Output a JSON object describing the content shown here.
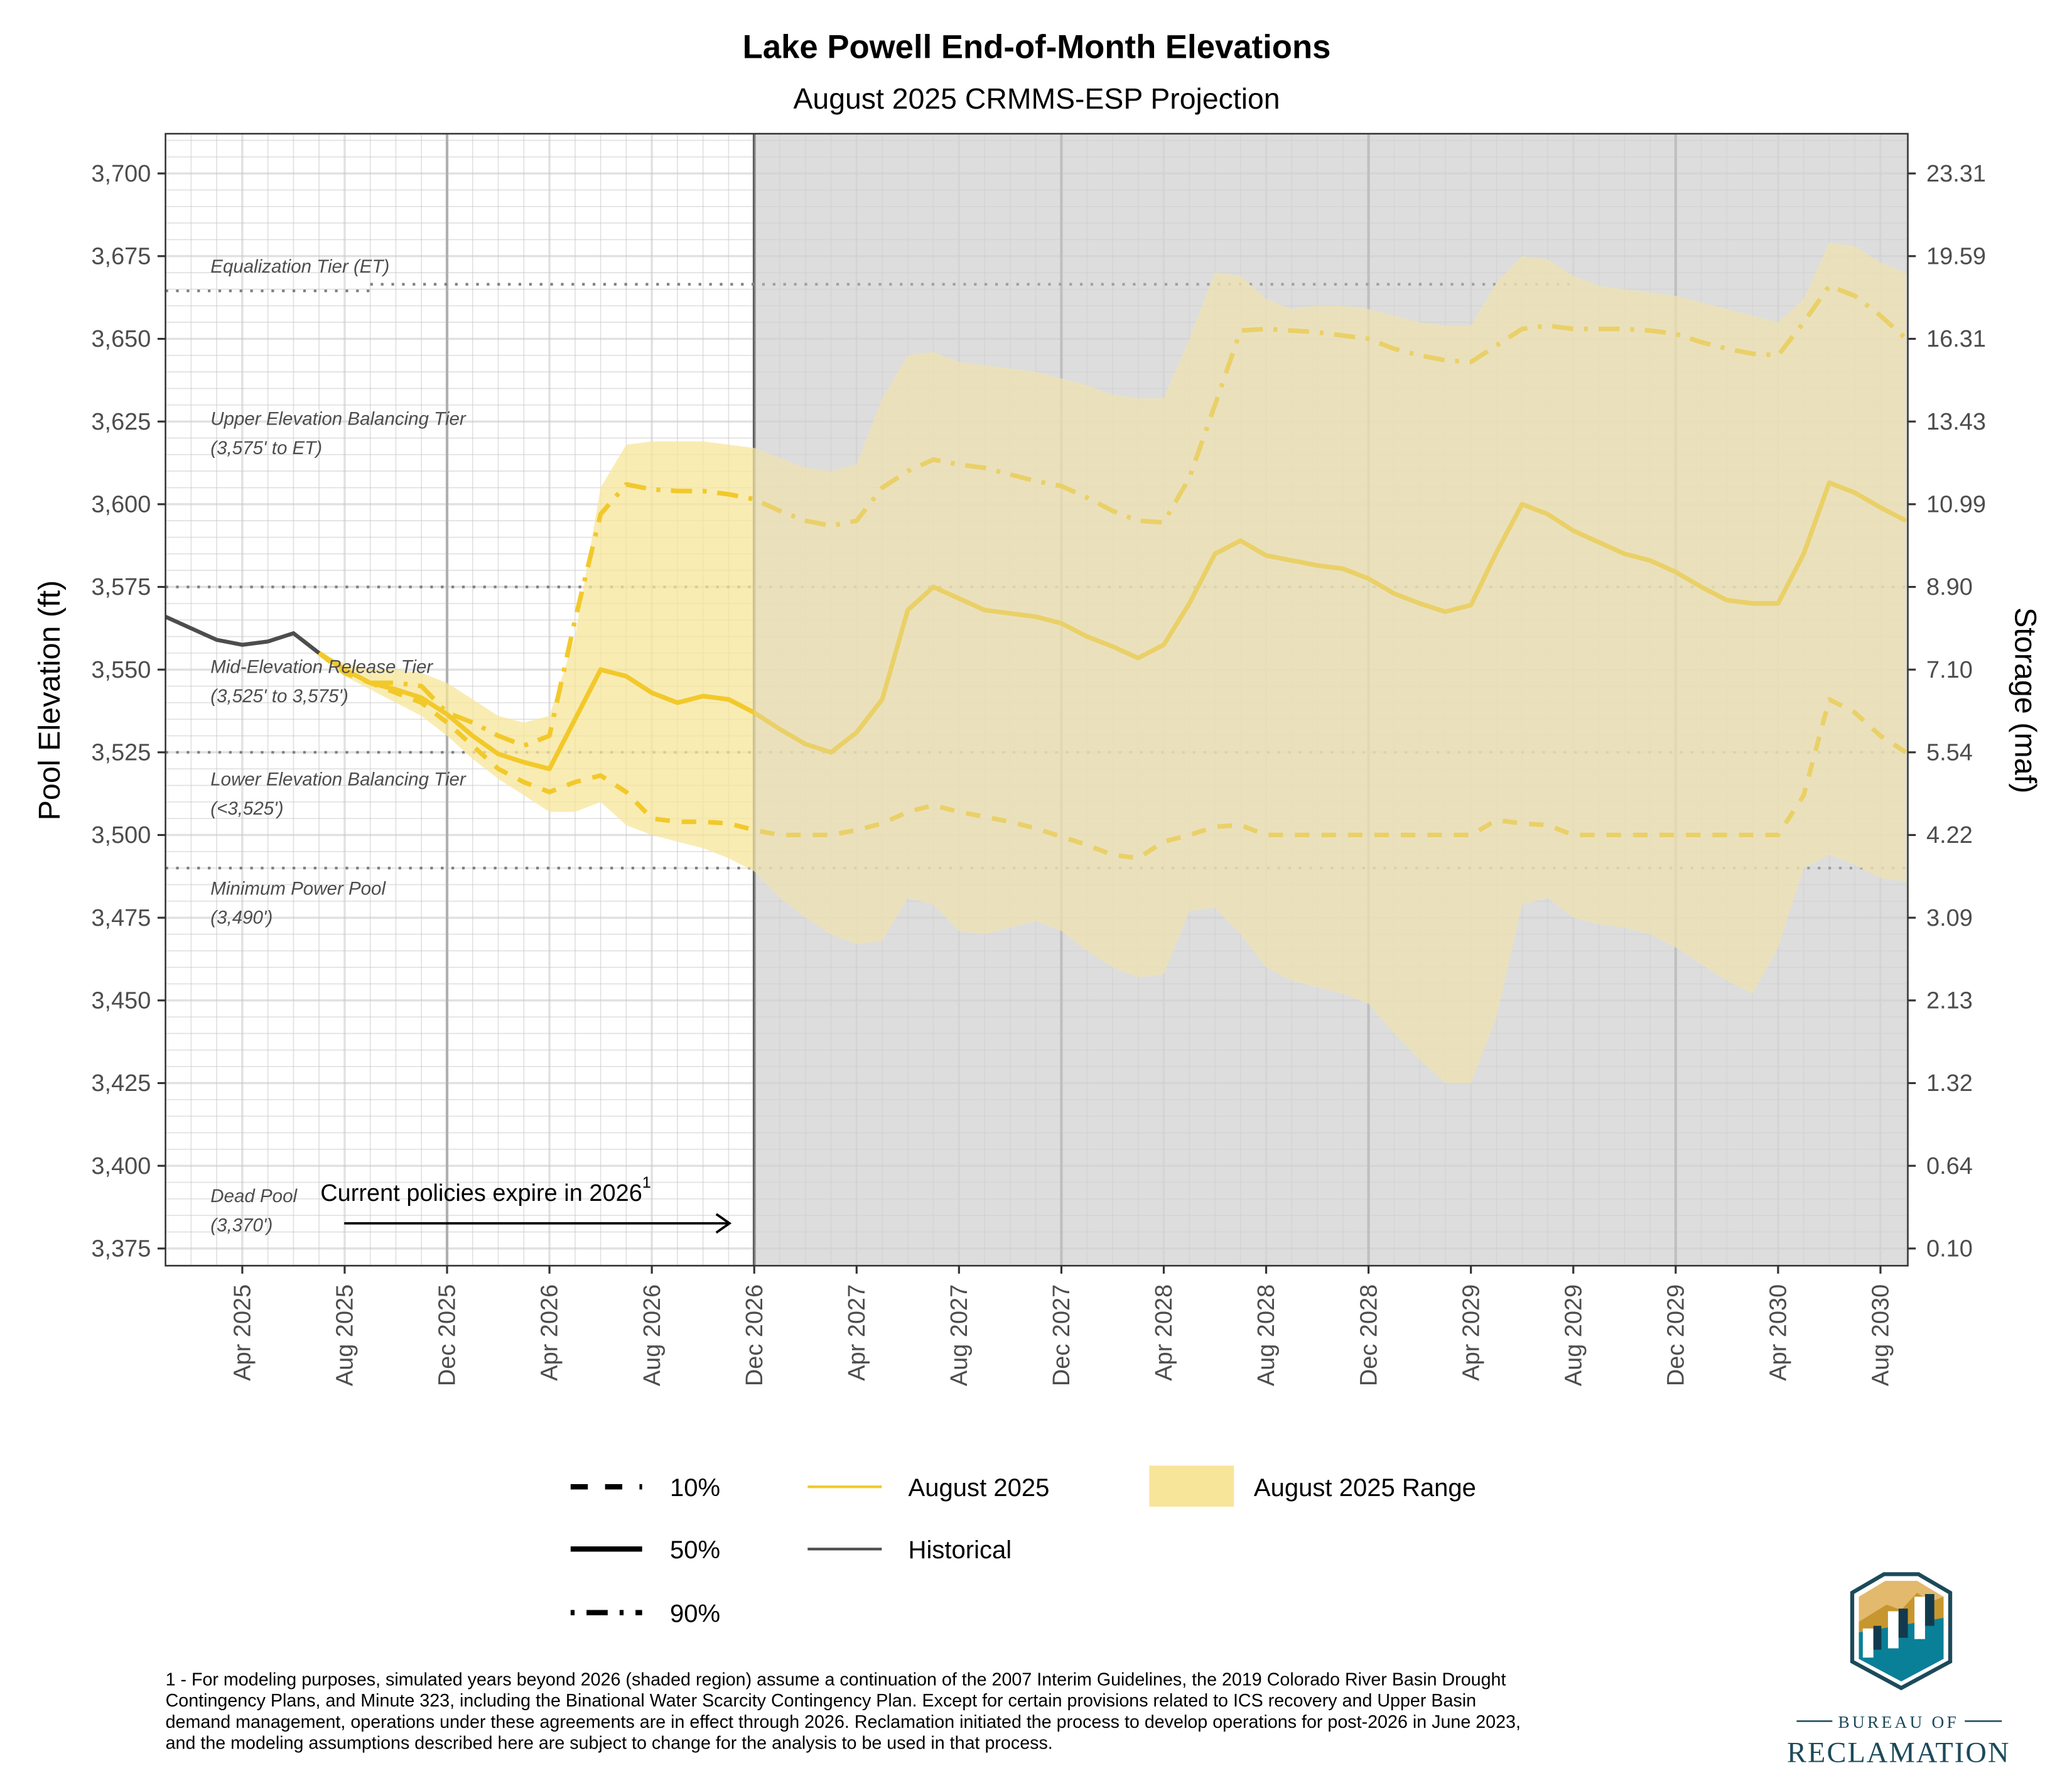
{
  "chart_data": {
    "type": "line",
    "title": "Lake Powell End-of-Month Elevations",
    "subtitle": "August 2025 CRMMS-ESP Projection",
    "ylabel": "Pool Elevation (ft)",
    "y2label": "Storage (maf)",
    "xlabel": "",
    "ylim": [
      3369,
      3712
    ],
    "yticks": [
      3375,
      3400,
      3425,
      3450,
      3475,
      3500,
      3525,
      3550,
      3575,
      3600,
      3625,
      3650,
      3675,
      3700
    ],
    "ytick_labels": [
      "3,375",
      "3,400",
      "3,425",
      "3,450",
      "3,475",
      "3,500",
      "3,525",
      "3,550",
      "3,575",
      "3,600",
      "3,625",
      "3,650",
      "3,675",
      "3,700"
    ],
    "y2tick_labels": [
      "0.10",
      "0.64",
      "1.32",
      "2.13",
      "3.09",
      "4.22",
      "5.54",
      "7.10",
      "8.90",
      "10.99",
      "13.43",
      "16.31",
      "19.59",
      "23.31"
    ],
    "x_start": "Jan 2025",
    "x_end": "Sep 2030",
    "xtick_labels": [
      "Apr 2025",
      "Aug 2025",
      "Dec 2025",
      "Apr 2026",
      "Aug 2026",
      "Dec 2026",
      "Apr 2027",
      "Aug 2027",
      "Dec 2027",
      "Apr 2028",
      "Aug 2028",
      "Dec 2028",
      "Apr 2029",
      "Aug 2029",
      "Dec 2029",
      "Apr 2030",
      "Aug 2030"
    ],
    "xtick_month_index": [
      3,
      7,
      11,
      15,
      19,
      23,
      27,
      31,
      35,
      39,
      43,
      47,
      51,
      55,
      59,
      63,
      67
    ],
    "year_divider_month_index": [
      11,
      35,
      47,
      59
    ],
    "shaded_from_month_index": 23,
    "grid": true,
    "legend_position": "bottom",
    "historical": {
      "name": "Historical",
      "start_month_index": 0,
      "values": [
        3566,
        3562.5,
        3559,
        3557.5,
        3558.5,
        3561,
        3555
      ]
    },
    "projection_start_month_index": 6,
    "series": [
      {
        "name": "10%",
        "trace": "August 2025",
        "values": [
          3555,
          3549,
          3546,
          3543,
          3540,
          3534,
          3527,
          3520,
          3516,
          3513,
          3516,
          3518,
          3513,
          3505,
          3504,
          3504,
          3503.5,
          3501.5,
          3500,
          3500,
          3500,
          3501.5,
          3503.5,
          3507,
          3509,
          3507,
          3505.5,
          3504,
          3502,
          3499.5,
          3497,
          3494,
          3493,
          3498,
          3500,
          3502.5,
          3503,
          3500,
          3500,
          3500,
          3500,
          3500,
          3500,
          3500,
          3500,
          3500,
          3504.5,
          3503.5,
          3503,
          3500,
          3500,
          3500,
          3500,
          3500,
          3500,
          3500,
          3500,
          3500,
          3512,
          3541,
          3537,
          3530,
          3525
        ]
      },
      {
        "name": "50%",
        "trace": "August 2025",
        "values": [
          3555,
          3550,
          3546,
          3544,
          3541.5,
          3536.5,
          3530,
          3524.5,
          3522,
          3520,
          3535,
          3550,
          3548,
          3543,
          3540,
          3542,
          3541,
          3537,
          3532,
          3527.5,
          3525,
          3531,
          3541,
          3568,
          3575,
          3571.5,
          3568,
          3567,
          3566,
          3564,
          3560,
          3557,
          3553.5,
          3557.5,
          3570,
          3585,
          3589,
          3584.5,
          3583,
          3581.5,
          3580.5,
          3577.5,
          3573,
          3570,
          3567.5,
          3569.5,
          3585.5,
          3600,
          3597,
          3592,
          3588.5,
          3585,
          3583,
          3579.5,
          3575,
          3571,
          3570,
          3570,
          3585,
          3606.5,
          3603.5,
          3599,
          3595
        ]
      },
      {
        "name": "90%",
        "trace": "August 2025",
        "values": [
          3555,
          3550,
          3546,
          3546,
          3545,
          3537,
          3534,
          3530,
          3527,
          3530,
          3565,
          3597,
          3606,
          3604.5,
          3604,
          3604,
          3603,
          3601.5,
          3598,
          3595,
          3593.5,
          3595,
          3605,
          3610,
          3613.5,
          3612,
          3611,
          3609,
          3607,
          3605.5,
          3602,
          3598,
          3595,
          3594.5,
          3608,
          3630,
          3652.5,
          3653,
          3652.5,
          3652,
          3651,
          3650,
          3647,
          3645,
          3643.5,
          3643,
          3648,
          3653,
          3654,
          3653,
          3653,
          3653,
          3652.5,
          3651.5,
          3649,
          3647,
          3645.5,
          3645,
          3655,
          3666,
          3663,
          3657,
          3650
        ]
      }
    ],
    "range": {
      "name": "August 2025 Range",
      "max": [
        3555,
        3552,
        3550,
        3550,
        3549,
        3546,
        3541,
        3536,
        3534,
        3536,
        3560,
        3605,
        3618,
        3619,
        3619,
        3619,
        3618,
        3617,
        3614,
        3611,
        3610,
        3612,
        3632,
        3645,
        3646,
        3643,
        3642,
        3641,
        3640,
        3638,
        3636,
        3633,
        3632,
        3632,
        3650,
        3670,
        3669,
        3662,
        3659,
        3660,
        3660,
        3659,
        3657,
        3655,
        3654,
        3654,
        3667,
        3675,
        3674,
        3669,
        3666,
        3665,
        3664,
        3663,
        3661,
        3659,
        3657,
        3655,
        3662,
        3679,
        3678,
        3673,
        3670
      ],
      "min": [
        3555,
        3548,
        3544,
        3540,
        3536,
        3530,
        3523,
        3517,
        3512,
        3507,
        3507,
        3510,
        3503,
        3500,
        3498,
        3496,
        3493,
        3489,
        3481,
        3475,
        3470,
        3467,
        3468,
        3481,
        3479,
        3471,
        3470,
        3472,
        3474,
        3471,
        3465,
        3460,
        3457,
        3458,
        3477,
        3478,
        3470,
        3460,
        3456,
        3454,
        3452,
        3449,
        3440,
        3432,
        3425,
        3425,
        3445,
        3479,
        3481,
        3475,
        3473,
        3472,
        3470,
        3466,
        3461,
        3456,
        3452,
        3466,
        3490,
        3494,
        3491,
        3487,
        3486
      ]
    },
    "reference_lines": [
      {
        "name": "Equalization Tier (ET)",
        "segments": [
          {
            "from": 0,
            "to": 8,
            "value": 3664.5
          },
          {
            "from": 8,
            "to": 55,
            "value": 3666.5
          }
        ]
      },
      {
        "name": "Upper/Mid tier boundary",
        "segments": [
          {
            "from": 0,
            "to": 68,
            "value": 3575
          }
        ]
      },
      {
        "name": "Mid/Lower tier boundary",
        "segments": [
          {
            "from": 0,
            "to": 68,
            "value": 3525
          }
        ]
      },
      {
        "name": "Minimum Power Pool",
        "segments": [
          {
            "from": 0,
            "to": 68,
            "value": 3490
          }
        ]
      }
    ],
    "zone_labels": [
      {
        "line1": "Equalization Tier (ET)",
        "line2": "",
        "value": 3670
      },
      {
        "line1": "Upper Elevation Balancing Tier",
        "line2": "(3,575' to ET)",
        "value": 3624
      },
      {
        "line1": "Mid-Elevation Release Tier",
        "line2": "(3,525' to 3,575')",
        "value": 3549
      },
      {
        "line1": "Lower Elevation Balancing Tier",
        "line2": "(<3,525')",
        "value": 3515
      },
      {
        "line1": "Minimum Power Pool",
        "line2": "(3,490')",
        "value": 3482
      },
      {
        "line1": "Dead Pool",
        "line2": "(3,370')",
        "value": 3389
      }
    ],
    "annotation": {
      "text": "Current policies expire in  2026",
      "superscript": "1"
    },
    "legend": {
      "percentiles": [
        "10%",
        "50%",
        "90%"
      ],
      "traces": [
        "August 2025",
        "Historical"
      ],
      "range": "August 2025 Range"
    },
    "colors": {
      "projection": "#f2c92a",
      "projection_shaded": "#dcc76a",
      "range_fill": "#f7e59a",
      "historical": "#4d4d4d",
      "shaded_bg": "#dedede",
      "reference": "#7f7f7f"
    }
  },
  "footnote": [
    "1 - For modeling purposes, simulated years beyond 2026 (shaded region) assume a continuation of the 2007 Interim Guidelines, the 2019 Colorado River Basin Drought",
    "Contingency Plans, and Minute 323, including the Binational Water Scarcity Contingency Plan. Except for certain provisions related to ICS recovery and Upper Basin",
    "demand management, operations under these agreements are in effect through 2026. Reclamation initiated the process to develop operations for post-2026 in June 2023,",
    "and the modeling assumptions described here are subject to change for the analysis to be used in that process."
  ],
  "logo": {
    "line1": "BUREAU OF",
    "line2": "RECLAMATION"
  }
}
